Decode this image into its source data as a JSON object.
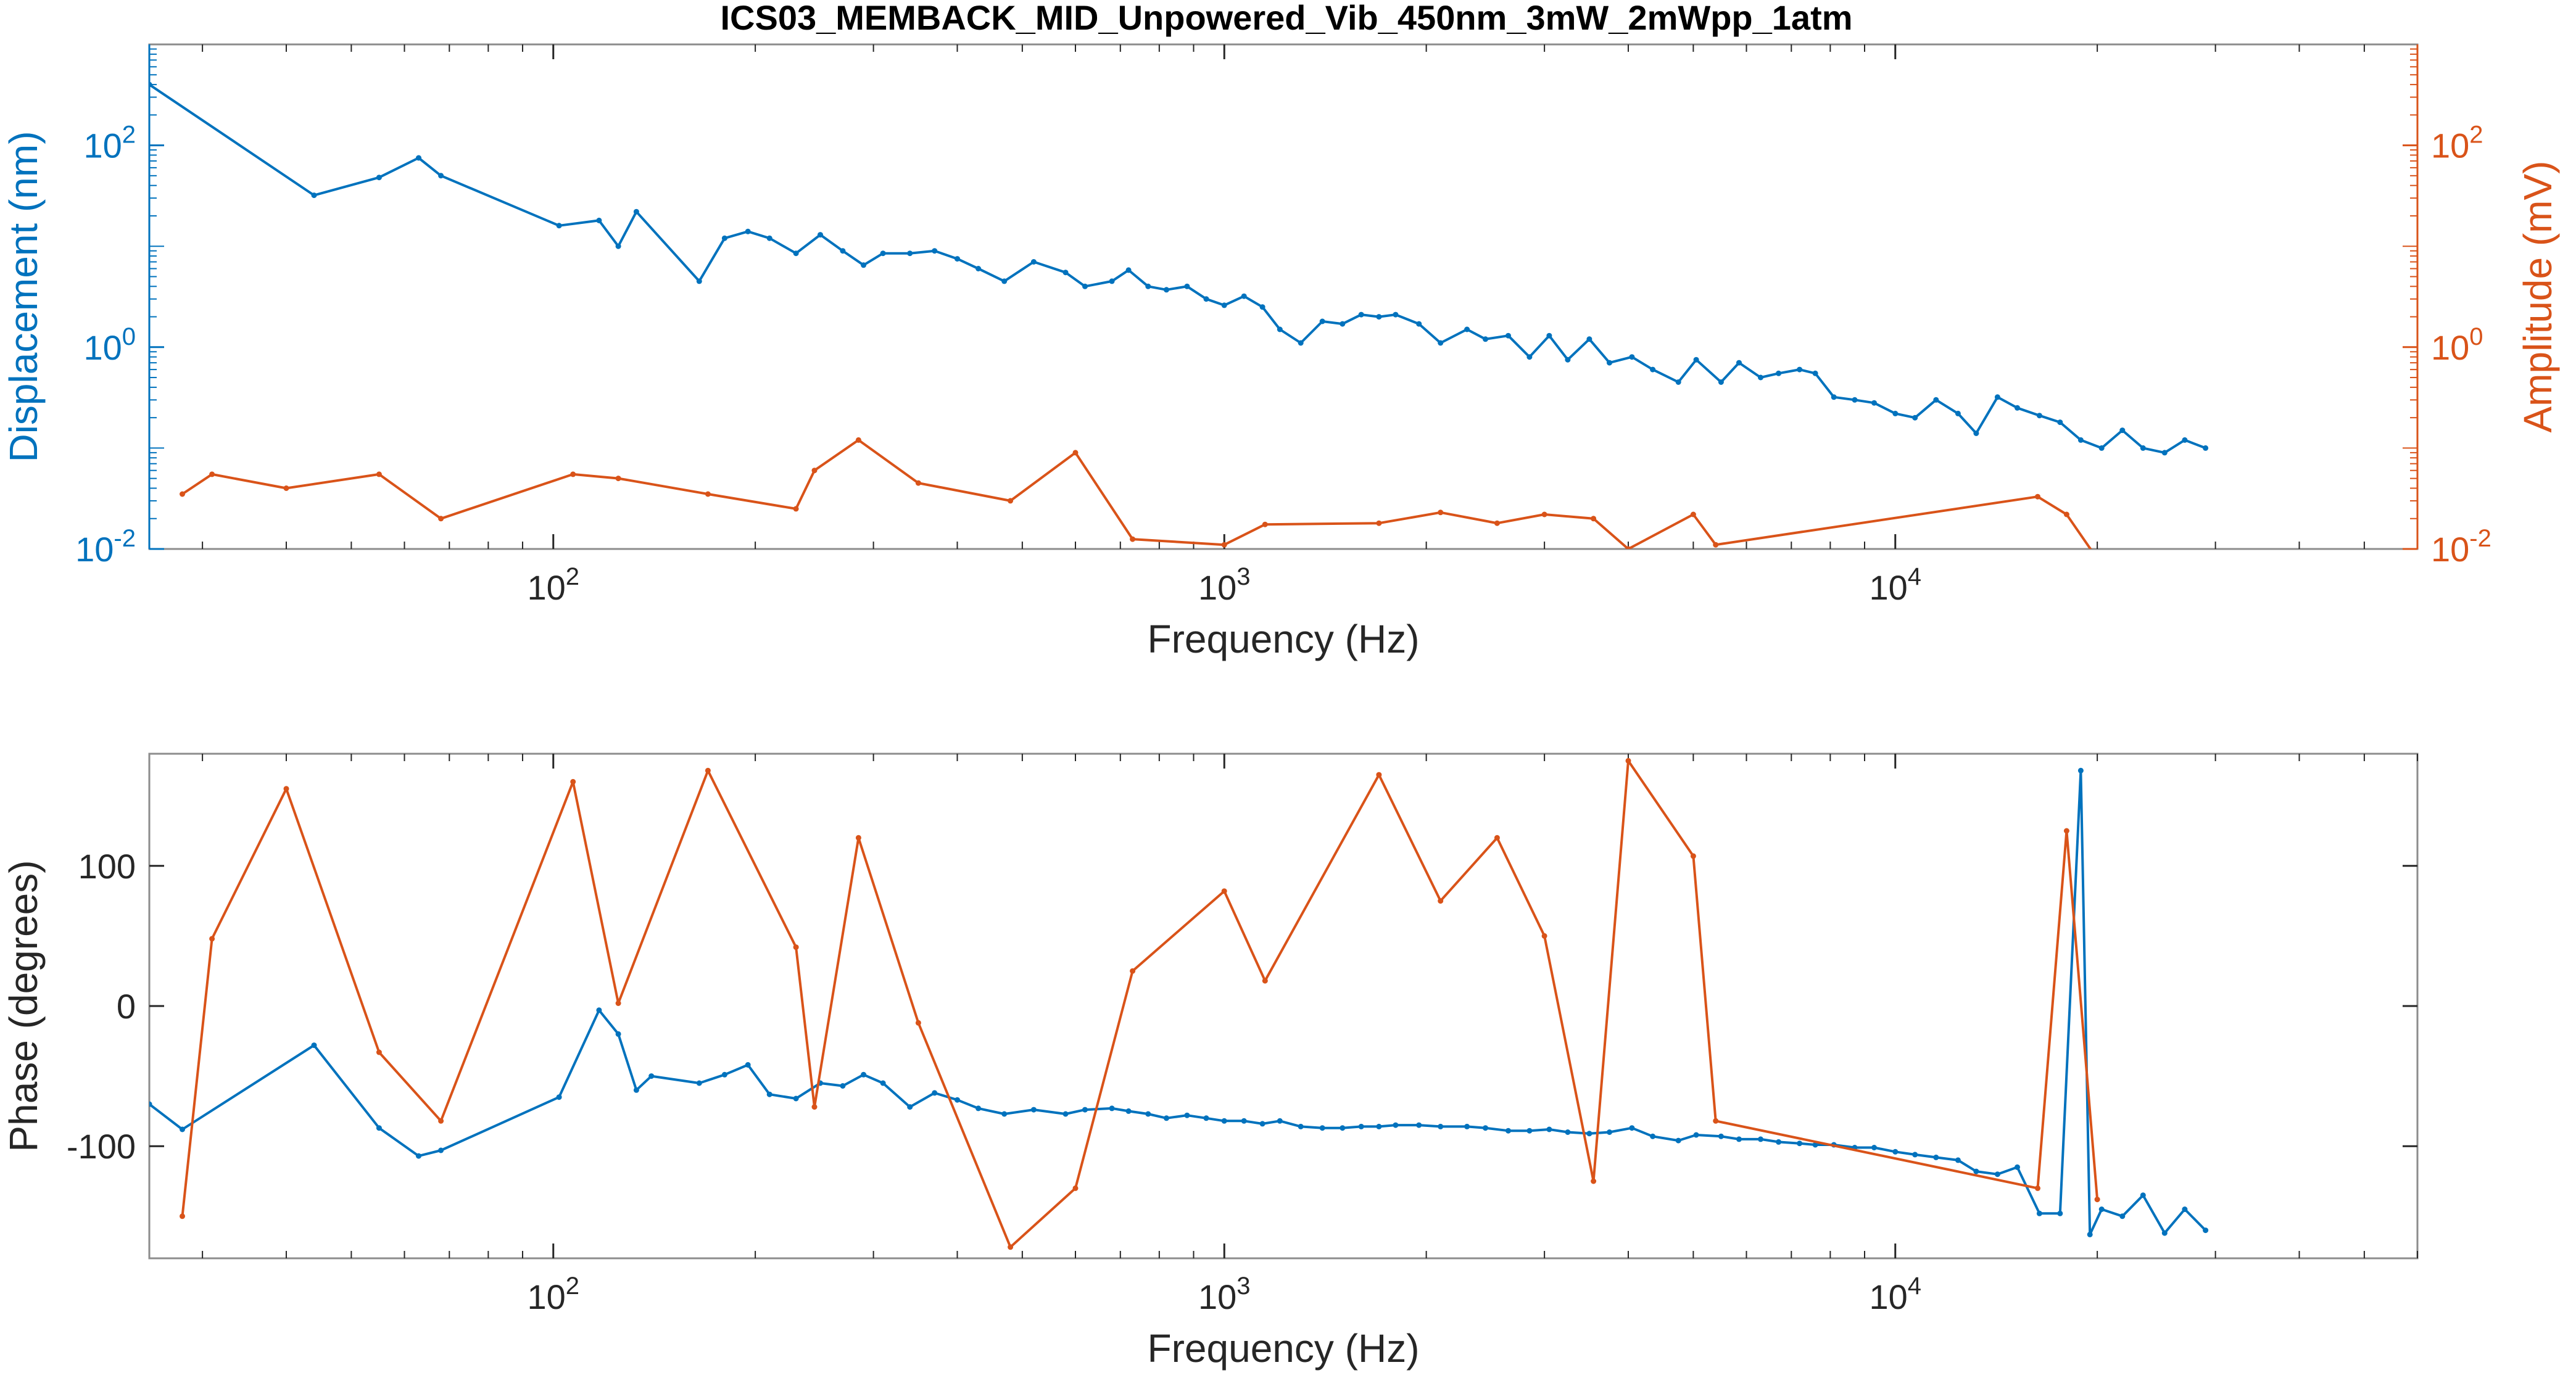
{
  "figure": {
    "title": "ICS03_MEMBACK_MID_Unpowered_Vib_450nm_3mW_2mWpp_1atm"
  },
  "colors": {
    "blue": "#0072BD",
    "orange": "#D95319",
    "axis": "#262626",
    "box": "#8c8c8c"
  },
  "chart_data": [
    {
      "type": "line",
      "title": "ICS03_MEMBACK_MID_Unpowered_Vib_450nm_3mW_2mWpp_1atm",
      "xlabel": "Frequency (Hz)",
      "ylabel": "Displacement (nm)",
      "ylabel_right": "Amplitude (mV)",
      "xscale": "log",
      "yscale": "log",
      "xlim": [
        25,
        60000
      ],
      "ylim": [
        0.01,
        1000
      ],
      "ylim_right": [
        0.01,
        1000
      ],
      "grid": false,
      "x_ticks": [
        {
          "base": "10",
          "exp": "2",
          "value": 100
        },
        {
          "base": "10",
          "exp": "3",
          "value": 1000
        },
        {
          "base": "10",
          "exp": "4",
          "value": 10000
        }
      ],
      "y_ticks": [
        {
          "base": "10",
          "exp": "2",
          "value": 100
        },
        {
          "base": "10",
          "exp": "0",
          "value": 1
        },
        {
          "base": "10",
          "exp": "-2",
          "value": 0.01
        }
      ],
      "y_ticks_right": [
        {
          "base": "10",
          "exp": "2",
          "value": 100
        },
        {
          "base": "10",
          "exp": "0",
          "value": 1
        },
        {
          "base": "10",
          "exp": "-2",
          "value": 0.01
        }
      ],
      "series": [
        {
          "axis": "left",
          "color": "#0072BD",
          "x": [
            25,
            44,
            55,
            63,
            68,
            102,
            117,
            125,
            133,
            165,
            180,
            195,
            210,
            230,
            250,
            270,
            290,
            310,
            340,
            370,
            400,
            430,
            470,
            520,
            580,
            620,
            680,
            720,
            770,
            820,
            880,
            940,
            1000,
            1070,
            1140,
            1210,
            1300,
            1400,
            1500,
            1600,
            1700,
            1800,
            1950,
            2100,
            2300,
            2450,
            2650,
            2850,
            3050,
            3250,
            3500,
            3750,
            4050,
            4350,
            4750,
            5050,
            5500,
            5850,
            6300,
            6700,
            7200,
            7600,
            8100,
            8700,
            9300,
            10000,
            10700,
            11500,
            12400,
            13200,
            14200,
            15200,
            16400,
            17600,
            18900,
            20300,
            21800,
            23400,
            25200,
            27000,
            29000
          ],
          "values": [
            400,
            32,
            48,
            75,
            50,
            16,
            18,
            10,
            22,
            4.5,
            12,
            14,
            12,
            8.5,
            13,
            9,
            6.5,
            8.5,
            8.5,
            9,
            7.5,
            6,
            4.5,
            7,
            5.5,
            4,
            4.5,
            5.8,
            4,
            3.7,
            4,
            3,
            2.6,
            3.2,
            2.5,
            1.5,
            1.1,
            1.8,
            1.7,
            2.1,
            2,
            2.1,
            1.7,
            1.1,
            1.5,
            1.2,
            1.3,
            0.8,
            1.3,
            0.75,
            1.2,
            0.7,
            0.8,
            0.6,
            0.45,
            0.75,
            0.45,
            0.7,
            0.5,
            0.55,
            0.6,
            0.55,
            0.32,
            0.3,
            0.28,
            0.22,
            0.2,
            0.3,
            0.22,
            0.14,
            0.32,
            0.25,
            0.21,
            0.18,
            0.12,
            0.1,
            0.15,
            0.1,
            0.09,
            0.12,
            0.1
          ]
        },
        {
          "axis": "right",
          "color": "#D95319",
          "x": [
            28,
            31,
            40,
            55,
            68,
            107,
            125,
            170,
            230,
            245,
            285,
            350,
            480,
            600,
            730,
            1000,
            1150,
            1700,
            2100,
            2550,
            3000,
            3550,
            4000,
            5000,
            5400,
            16300,
            18000,
            20000
          ],
          "values": [
            0.035,
            0.055,
            0.04,
            0.055,
            0.02,
            0.055,
            0.05,
            0.035,
            0.025,
            0.06,
            0.12,
            0.045,
            0.03,
            0.09,
            0.0125,
            0.011,
            0.0175,
            0.018,
            0.023,
            0.018,
            0.022,
            0.02,
            0.01,
            0.022,
            0.011,
            0.033,
            0.022,
            0.008
          ]
        }
      ]
    },
    {
      "type": "line",
      "xlabel": "Frequency (Hz)",
      "ylabel": "Phase (degrees)",
      "xscale": "log",
      "xlim": [
        25,
        60000
      ],
      "ylim": [
        -180,
        180
      ],
      "grid": false,
      "x_ticks": [
        {
          "base": "10",
          "exp": "2",
          "value": 100
        },
        {
          "base": "10",
          "exp": "3",
          "value": 1000
        },
        {
          "base": "10",
          "exp": "4",
          "value": 10000
        }
      ],
      "y_ticks": [
        {
          "label": "100",
          "value": 100
        },
        {
          "label": "0",
          "value": 0
        },
        {
          "label": "-100",
          "value": -100
        }
      ],
      "series": [
        {
          "color": "#0072BD",
          "x": [
            25,
            28,
            44,
            55,
            63,
            68,
            102,
            117,
            125,
            133,
            140,
            165,
            180,
            195,
            210,
            230,
            250,
            270,
            290,
            310,
            340,
            370,
            400,
            430,
            470,
            520,
            580,
            620,
            680,
            720,
            770,
            820,
            880,
            940,
            1000,
            1070,
            1140,
            1210,
            1300,
            1400,
            1500,
            1600,
            1700,
            1800,
            1950,
            2100,
            2300,
            2450,
            2650,
            2850,
            3050,
            3250,
            3500,
            3750,
            4050,
            4350,
            4750,
            5050,
            5500,
            5850,
            6300,
            6700,
            7200,
            7600,
            8100,
            8700,
            9300,
            10000,
            10700,
            11500,
            12400,
            13200,
            14200,
            15200,
            16400,
            17600,
            18900,
            19500,
            20300,
            21800,
            23400,
            25200,
            27000,
            29000
          ],
          "values": [
            -70,
            -88,
            -28,
            -87,
            -107,
            -103,
            -65,
            -3,
            -20,
            -60,
            -50,
            -55,
            -49,
            -42,
            -63,
            -66,
            -55,
            -57,
            -49,
            -55,
            -72,
            -62,
            -67,
            -73,
            -77,
            -74,
            -77,
            -74,
            -73,
            -75,
            -77,
            -80,
            -78,
            -80,
            -82,
            -82,
            -84,
            -82,
            -86,
            -87,
            -87,
            -86,
            -86,
            -85,
            -85,
            -86,
            -86,
            -87,
            -89,
            -89,
            -88,
            -90,
            -91,
            -90,
            -87,
            -93,
            -96,
            -92,
            -93,
            -95,
            -95,
            -97,
            -98,
            -99,
            -99,
            -101,
            -101,
            -104,
            -106,
            -108,
            -110,
            -118,
            -120,
            -115,
            -148,
            -148,
            168,
            -163,
            -145,
            -150,
            -135,
            -162,
            -145,
            -160
          ]
        },
        {
          "color": "#D95319",
          "x": [
            28,
            31,
            40,
            55,
            68,
            107,
            125,
            170,
            230,
            245,
            285,
            350,
            480,
            600,
            730,
            1000,
            1150,
            1700,
            2100,
            2550,
            3000,
            3550,
            4000,
            5000,
            5400,
            16300,
            18000,
            20000
          ],
          "values": [
            -150,
            48,
            155,
            -33,
            -82,
            160,
            2,
            168,
            42,
            -72,
            120,
            -12,
            -172,
            -130,
            25,
            82,
            18,
            165,
            75,
            120,
            50,
            -125,
            175,
            107,
            -82,
            -130,
            125,
            -138
          ]
        }
      ]
    }
  ]
}
